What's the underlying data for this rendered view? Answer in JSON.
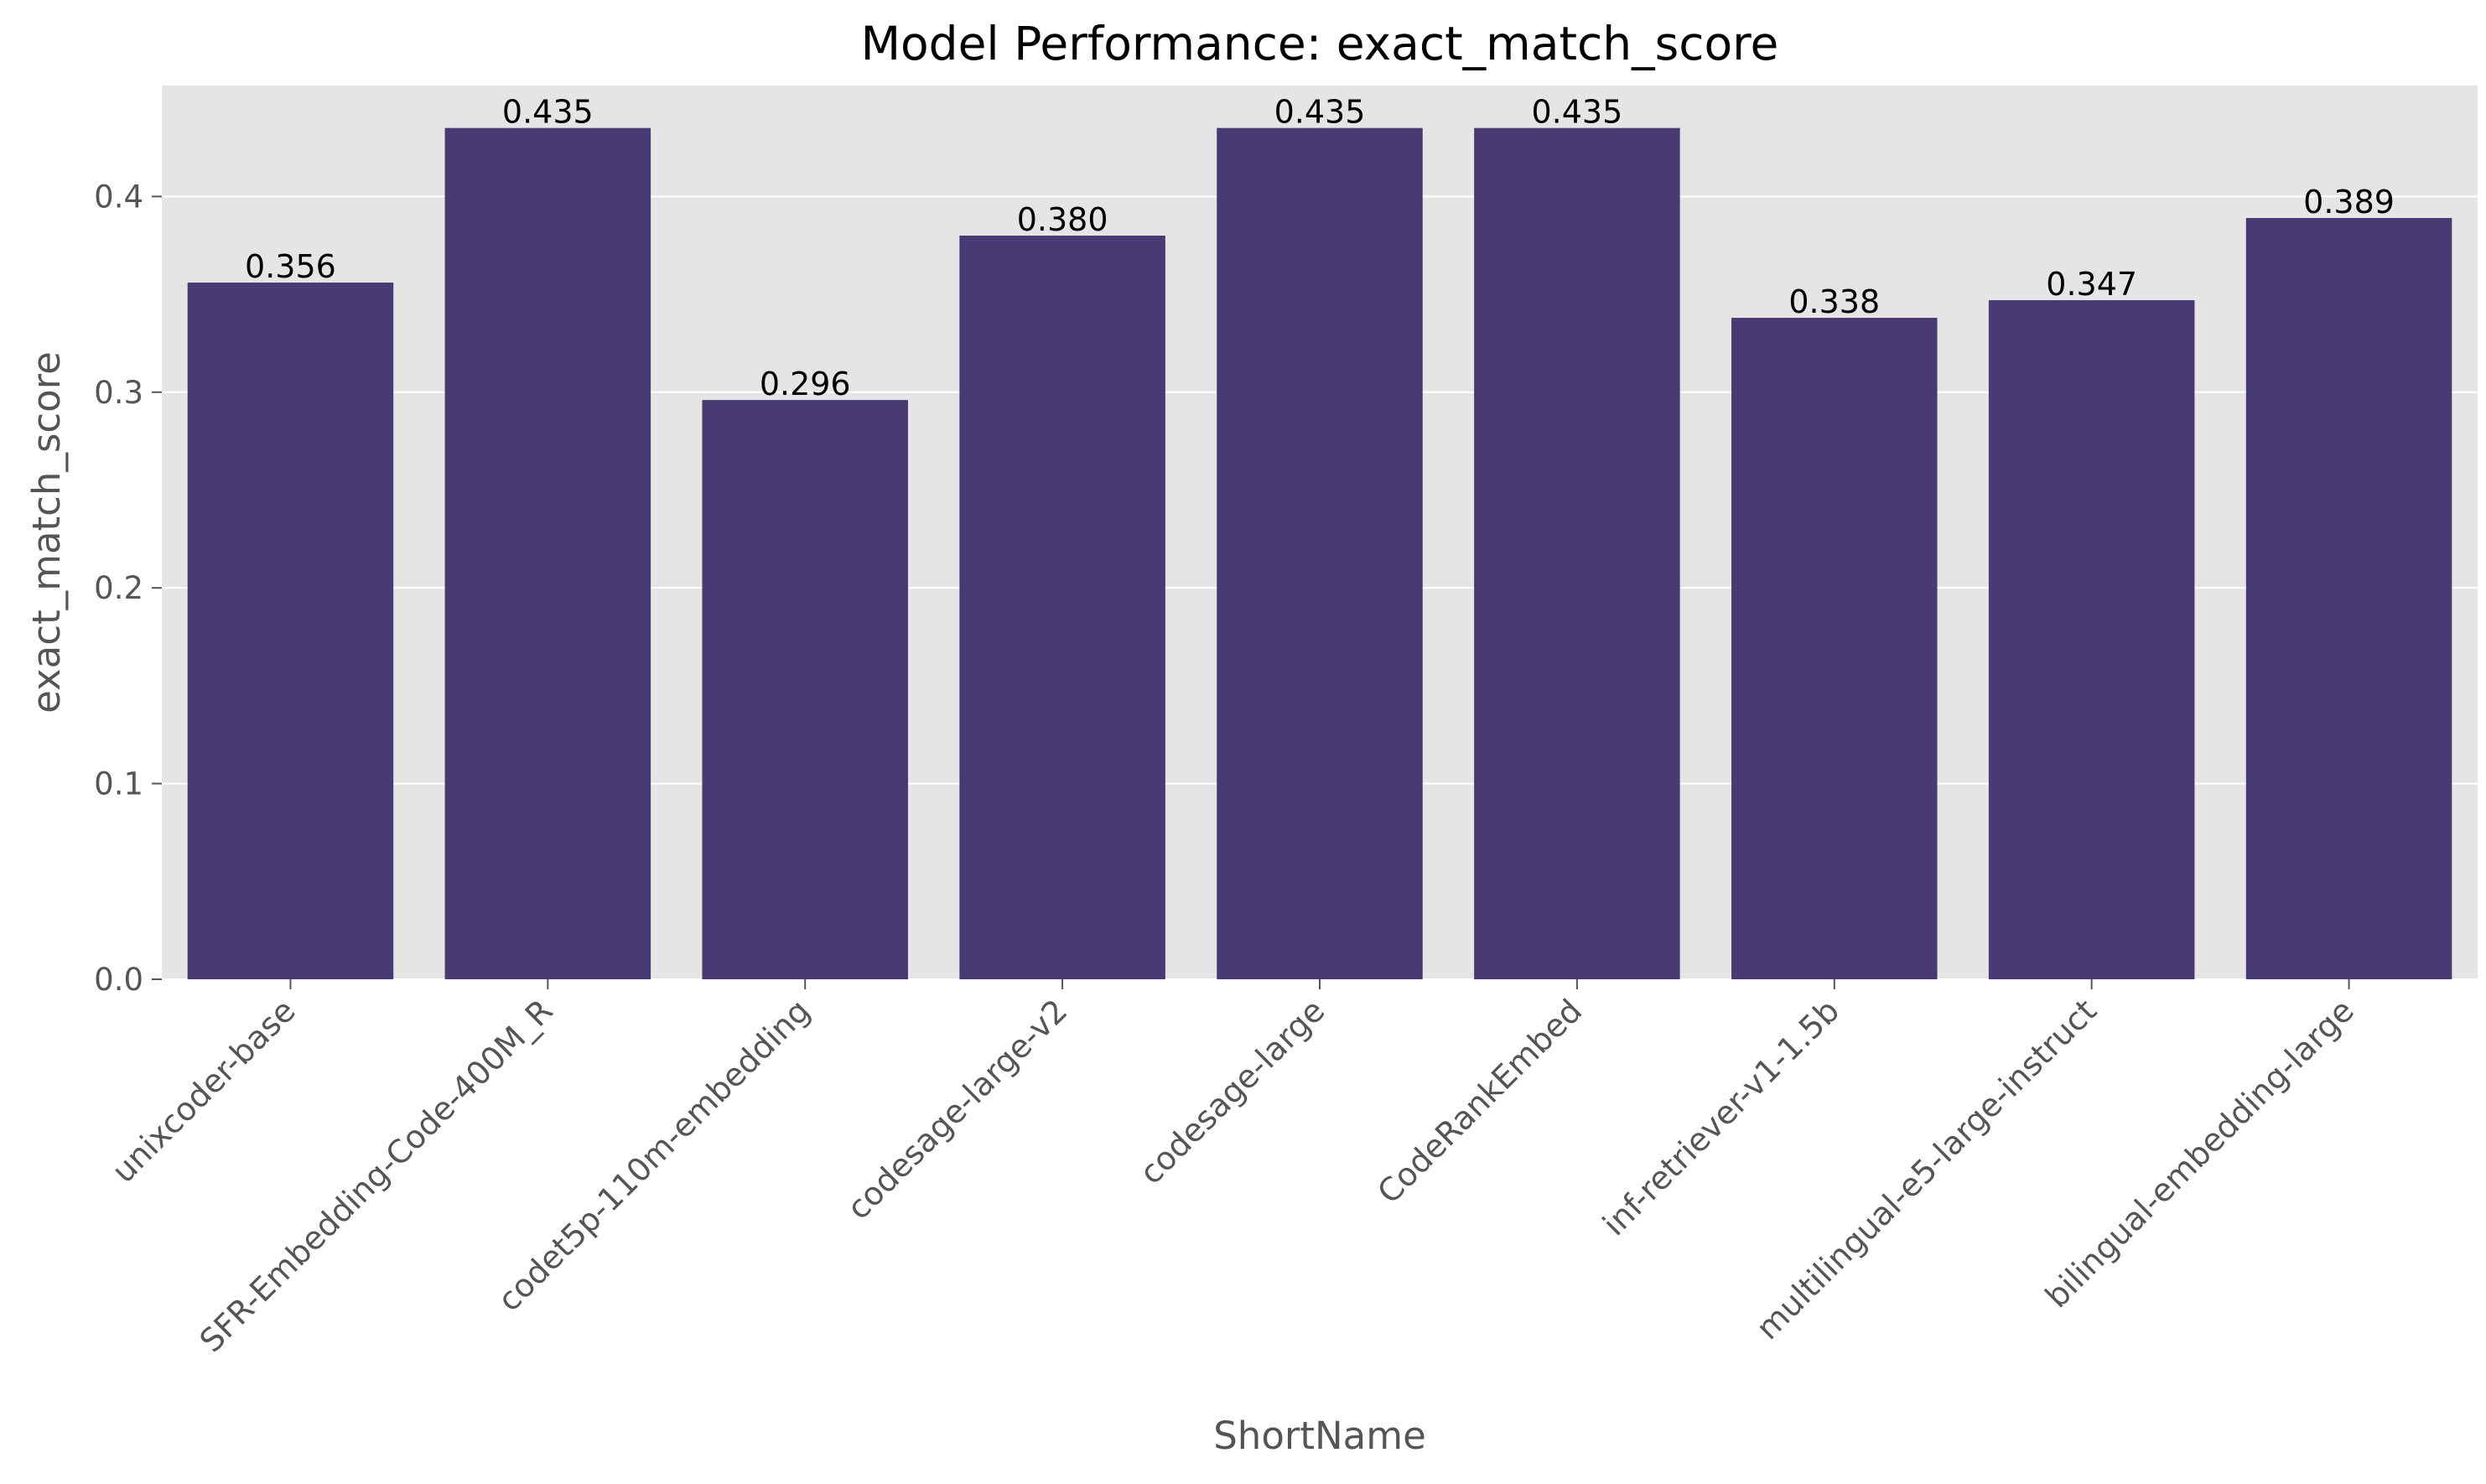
{
  "chart_data": {
    "type": "bar",
    "title": "Model Performance: exact_match_score",
    "xlabel": "ShortName",
    "ylabel": "exact_match_score",
    "categories": [
      "unixcoder-base",
      "SFR-Embedding-Code-400M_R",
      "codet5p-110m-embedding",
      "codesage-large-v2",
      "codesage-large",
      "CodeRankEmbed",
      "inf-retriever-v1-1.5b",
      "multilingual-e5-large-instruct",
      "bilingual-embedding-large"
    ],
    "values": [
      0.356,
      0.435,
      0.296,
      0.38,
      0.435,
      0.435,
      0.338,
      0.347,
      0.389
    ],
    "data_labels": [
      "0.356",
      "0.435",
      "0.296",
      "0.380",
      "0.435",
      "0.435",
      "0.338",
      "0.347",
      "0.389"
    ],
    "yticks": [
      0.0,
      0.1,
      0.2,
      0.3,
      0.4
    ],
    "ytick_labels": [
      "0.0",
      "0.1",
      "0.2",
      "0.3",
      "0.4"
    ],
    "ylim": [
      0,
      0.4567
    ],
    "grid": true,
    "legend": "none",
    "colors": {
      "bar": "#483a73",
      "plot_background": "#e5e5e5",
      "grid": "#ffffff",
      "tick_text": "#555555",
      "label_text": "#555555",
      "title_text": "#000000",
      "data_label_text": "#000000"
    }
  }
}
